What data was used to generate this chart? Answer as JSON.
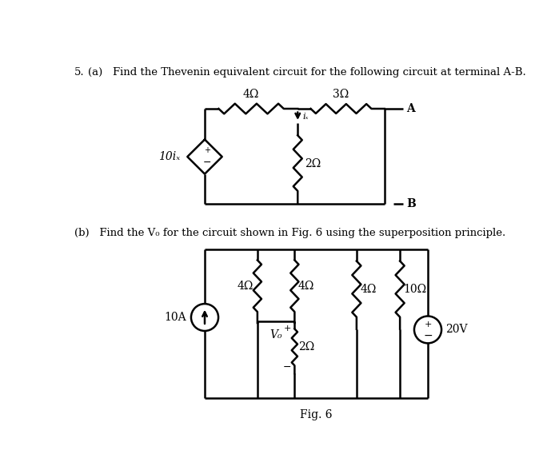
{
  "bg_color": "#ffffff",
  "text_color": "#000000",
  "line_color": "#000000",
  "lw": 1.8,
  "title_a": "5.    (a)   Find the Thevenin equivalent circuit for the following circuit at terminal A-B.",
  "title_b": "(b)   Find the V₀ for the circuit shown in Fig. 6 using the superposition principle.",
  "fig_label": "Fig. 6",
  "fs_title": 9.5,
  "fs_label": 10,
  "fs_small": 8
}
